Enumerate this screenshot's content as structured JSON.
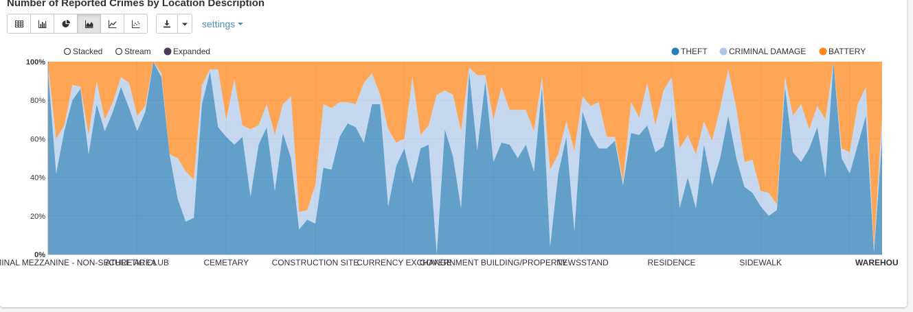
{
  "title": "Number of Reported Crimes by Location Description",
  "toolbar": {
    "view_buttons": [
      "table-icon",
      "bar-chart-icon",
      "pie-chart-icon",
      "area-chart-icon",
      "line-chart-icon",
      "scatter-chart-icon"
    ],
    "active_view": "area-chart-icon",
    "download_icon": "download-icon",
    "settings_label": "settings"
  },
  "controls": {
    "stacked_label": "Stacked",
    "stream_label": "Stream",
    "expanded_label": "Expanded",
    "selected": "Expanded"
  },
  "chart_data": {
    "type": "area",
    "mode": "expanded",
    "title": "Number of Reported Crimes by Location Description",
    "xlabel": "",
    "ylabel": "",
    "ylim": [
      0,
      100
    ],
    "yticks": [
      "0%",
      "20%",
      "40%",
      "60%",
      "80%",
      "100%"
    ],
    "grid": true,
    "legend_position": "top-right",
    "x_labels": [
      {
        "index": 0,
        "label": "AIRPORT TERMINAL MEZZANINE - NON-SECURE AREA"
      },
      {
        "index": 11,
        "label": "ATHLETIC CLUB"
      },
      {
        "index": 22,
        "label": "CEMETARY"
      },
      {
        "index": 33,
        "label": "CONSTRUCTION SITE"
      },
      {
        "index": 44,
        "label": "CURRENCY EXCHANGE"
      },
      {
        "index": 55,
        "label": "GOVERNMENT BUILDING/PROPERTY"
      },
      {
        "index": 66,
        "label": "NEWSSTAND"
      },
      {
        "index": 77,
        "label": "RESIDENCE"
      },
      {
        "index": 88,
        "label": "SIDEWALK"
      },
      {
        "index": 99,
        "label": "WAREHOUSE"
      }
    ],
    "series": [
      {
        "name": "THEFT",
        "color": "#1f77b4",
        "values": [
          95,
          42,
          64,
          80,
          86,
          52,
          78,
          64,
          74,
          87,
          76,
          64,
          74,
          100,
          92,
          52,
          29,
          17,
          19,
          78,
          95,
          66,
          61,
          57,
          61,
          30,
          57,
          66,
          33,
          63,
          50,
          13,
          18,
          16,
          45,
          44,
          61,
          68,
          66,
          58,
          78,
          78,
          25,
          46,
          55,
          37,
          55,
          57,
          0,
          65,
          51,
          24,
          95,
          54,
          90,
          48,
          58,
          57,
          50,
          57,
          43,
          87,
          4,
          42,
          61,
          12,
          74,
          62,
          55,
          55,
          59,
          36,
          63,
          62,
          67,
          53,
          56,
          72,
          24,
          40,
          24,
          57,
          36,
          50,
          72,
          50,
          35,
          32,
          25,
          20,
          23,
          87,
          53,
          48,
          55,
          66,
          40,
          100,
          50,
          42,
          57,
          72,
          1,
          60
        ]
      },
      {
        "name": "CRIMINAL DAMAGE",
        "color": "#aec7e8",
        "values": [
          3,
          18,
          3,
          8,
          1,
          10,
          12,
          6,
          5,
          5,
          13,
          8,
          3,
          0,
          2,
          0,
          21,
          26,
          20,
          10,
          1,
          30,
          9,
          34,
          6,
          35,
          10,
          12,
          29,
          15,
          32,
          9,
          5,
          20,
          33,
          32,
          18,
          11,
          12,
          31,
          16,
          5,
          40,
          12,
          5,
          55,
          7,
          10,
          83,
          20,
          32,
          40,
          2,
          39,
          3,
          22,
          29,
          18,
          25,
          18,
          21,
          5,
          40,
          10,
          8,
          42,
          8,
          15,
          24,
          6,
          2,
          2,
          16,
          9,
          22,
          14,
          29,
          20,
          31,
          22,
          28,
          12,
          23,
          26,
          24,
          26,
          13,
          17,
          8,
          12,
          3,
          5,
          19,
          30,
          10,
          11,
          30,
          0,
          5,
          11,
          21,
          15,
          2,
          12
        ]
      },
      {
        "name": "BATTERY",
        "color": "#ff7f0e",
        "values": [
          2,
          40,
          33,
          12,
          13,
          38,
          10,
          30,
          21,
          8,
          11,
          28,
          23,
          0,
          6,
          48,
          50,
          57,
          61,
          12,
          4,
          4,
          30,
          9,
          33,
          35,
          33,
          22,
          38,
          22,
          18,
          78,
          77,
          64,
          22,
          24,
          21,
          21,
          22,
          11,
          6,
          17,
          35,
          42,
          40,
          8,
          38,
          33,
          17,
          15,
          17,
          36,
          3,
          7,
          7,
          30,
          13,
          25,
          25,
          25,
          36,
          8,
          56,
          48,
          31,
          46,
          18,
          23,
          21,
          39,
          39,
          62,
          21,
          29,
          11,
          33,
          15,
          8,
          45,
          38,
          48,
          31,
          41,
          24,
          4,
          24,
          52,
          51,
          67,
          68,
          74,
          8,
          28,
          22,
          35,
          23,
          30,
          0,
          45,
          47,
          22,
          13,
          97,
          28
        ]
      }
    ]
  }
}
